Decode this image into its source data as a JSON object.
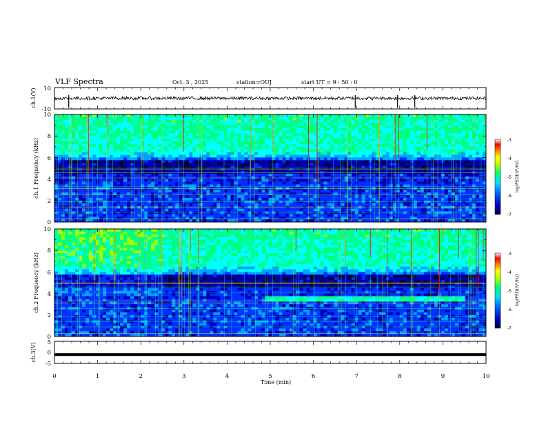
{
  "header": {
    "title": "VLF Spectra",
    "date": "Oct. 3 , 2025",
    "station": "station=OUJ",
    "start_ut": "start UT = 9 : 50 : 0"
  },
  "chart_data": [
    {
      "type": "line",
      "name": "ch1-waveform",
      "ylabel": "ch.1(V)",
      "ylim": [
        -10,
        10
      ],
      "yticks": [
        "10",
        "-10"
      ],
      "xlim": [
        0,
        10
      ],
      "baseline": 0,
      "spikes_x": [
        0.33,
        6.97,
        7.95,
        8.35
      ]
    },
    {
      "type": "heatmap",
      "name": "ch1-spectrogram",
      "ylabel": "ch.1 Frequency (kHz)",
      "ylim": [
        0,
        10
      ],
      "yticks": [
        "0",
        "2",
        "4",
        "6",
        "8",
        "10"
      ],
      "xlim": [
        0,
        10
      ],
      "colorbar": {
        "label": "log(PSD)(V²/Hz)",
        "range": [
          -7,
          -3
        ],
        "ticks": [
          "-3",
          "-4",
          "-5",
          "-6",
          "-7"
        ]
      }
    },
    {
      "type": "heatmap",
      "name": "ch2-spectrogram",
      "ylabel": "ch.2 Frequency (kHz)",
      "ylim": [
        0,
        10
      ],
      "yticks": [
        "0",
        "2",
        "4",
        "6",
        "8",
        "10"
      ],
      "xlim": [
        0,
        10
      ],
      "colorbar": {
        "label": "log(PSD)(V²/Hz)",
        "range": [
          -7,
          -3
        ],
        "ticks": [
          "-3",
          "-4",
          "-5",
          "-6",
          "-7"
        ]
      }
    },
    {
      "type": "line",
      "name": "ch3-waveform",
      "ylabel": "ch.3(V)",
      "ylim": [
        -5,
        5
      ],
      "yticks": [
        "5",
        "0",
        "-5"
      ],
      "xlim": [
        0,
        10
      ],
      "baseline": -1
    }
  ],
  "xaxis": {
    "label": "Time (min)",
    "ticks": [
      "0",
      "1",
      "2",
      "3",
      "4",
      "5",
      "6",
      "7",
      "8",
      "9",
      "10"
    ]
  },
  "colors": {
    "c0": "#000040",
    "c1": "#0000b0",
    "c2": "#0030ff",
    "c3": "#00a0ff",
    "c4": "#00ffff",
    "c5": "#00ff80",
    "c6": "#a0ff00",
    "c7": "#ffff00",
    "c8": "#ff8000",
    "c9": "#ff0000",
    "c10": "#ff9090",
    "c11": "#ffffff"
  }
}
